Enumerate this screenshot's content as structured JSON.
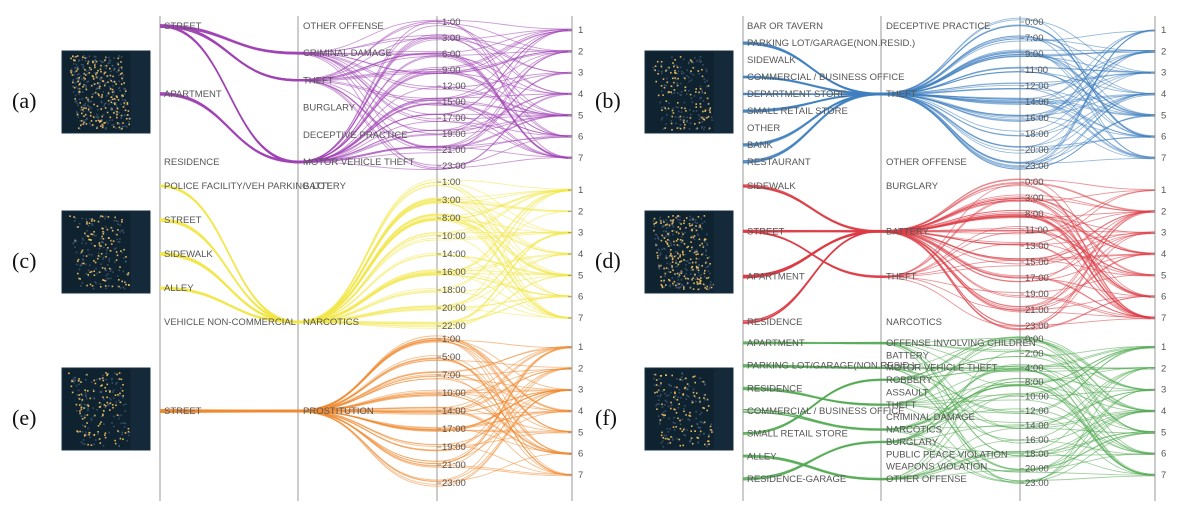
{
  "chart_data": [
    {
      "id": "a",
      "type": "parallel-coordinates",
      "label": "(a)",
      "color": "#a044b4",
      "locations": [
        "STREET",
        "APARTMENT",
        "RESIDENCE"
      ],
      "crimes": [
        "OTHER OFFENSE",
        "CRIMINAL DAMAGE",
        "THEFT",
        "BURGLARY",
        "DECEPTIVE PRACTICE",
        "MOTOR VEHICLE THEFT"
      ],
      "times": [
        "1:00",
        "3:00",
        "6:00",
        "9:00",
        "12:00",
        "15:00",
        "17:00",
        "19:00",
        "21:00",
        "23:00"
      ],
      "days": [
        "1",
        "2",
        "3",
        "4",
        "5",
        "6",
        "7"
      ],
      "hubs": [
        [
          0,
          2
        ],
        [
          0,
          5
        ],
        [
          0,
          1
        ],
        [
          1,
          5
        ]
      ]
    },
    {
      "id": "b",
      "type": "parallel-coordinates",
      "label": "(b)",
      "color": "#3f7fc0",
      "locations": [
        "BAR OR TAVERN",
        "PARKING LOT/GARAGE(NON.RESID.)",
        "SIDEWALK",
        "COMMERCIAL / BUSINESS OFFICE",
        "DEPARTMENT STORE",
        "SMALL RETAIL STORE",
        "OTHER",
        "BANK",
        "RESTAURANT"
      ],
      "crimes": [
        "DECEPTIVE PRACTICE",
        "THEFT",
        "OTHER OFFENSE"
      ],
      "times": [
        "0:00",
        "7:00",
        "9:00",
        "11:00",
        "12:00",
        "14:00",
        "16:00",
        "18:00",
        "20:00",
        "23:00"
      ],
      "days": [
        "1",
        "2",
        "3",
        "4",
        "5",
        "6",
        "7"
      ],
      "hubs": [
        [
          1,
          1
        ],
        [
          3,
          1
        ],
        [
          4,
          1
        ],
        [
          5,
          1
        ],
        [
          7,
          1
        ],
        [
          8,
          1
        ]
      ]
    },
    {
      "id": "c",
      "type": "parallel-coordinates",
      "label": "(c)",
      "color": "#f2e84a",
      "locations": [
        "POLICE FACILITY/VEH PARKING LOT",
        "STREET",
        "SIDEWALK",
        "ALLEY",
        "VEHICLE NON-COMMERCIAL"
      ],
      "crimes": [
        "BATTERY",
        "NARCOTICS"
      ],
      "times": [
        "1:00",
        "3:00",
        "8:00",
        "10:00",
        "14:00",
        "16:00",
        "18:00",
        "20:00",
        "22:00"
      ],
      "days": [
        "1",
        "2",
        "3",
        "4",
        "5",
        "6",
        "7"
      ],
      "hubs": [
        [
          1,
          1
        ],
        [
          2,
          1
        ],
        [
          3,
          1
        ],
        [
          0,
          1
        ]
      ]
    },
    {
      "id": "d",
      "type": "parallel-coordinates",
      "label": "(d)",
      "color": "#dc3c46",
      "locations": [
        "SIDEWALK",
        "STREET",
        "APARTMENT",
        "RESIDENCE"
      ],
      "crimes": [
        "BURGLARY",
        "BATTERY",
        "THEFT",
        "NARCOTICS"
      ],
      "times": [
        "0:00",
        "3:00",
        "8:00",
        "11:00",
        "13:00",
        "15:00",
        "17:00",
        "19:00",
        "21:00",
        "23:00"
      ],
      "days": [
        "1",
        "2",
        "3",
        "4",
        "5",
        "6",
        "7"
      ],
      "hubs": [
        [
          0,
          1
        ],
        [
          1,
          1
        ],
        [
          2,
          1
        ],
        [
          3,
          1
        ],
        [
          1,
          2
        ],
        [
          2,
          1
        ]
      ]
    },
    {
      "id": "e",
      "type": "parallel-coordinates",
      "label": "(e)",
      "color": "#f08a32",
      "locations": [
        "STREET"
      ],
      "crimes": [
        "PROSTITUTION"
      ],
      "times": [
        "1:00",
        "5:00",
        "7:00",
        "10:00",
        "14:00",
        "17:00",
        "19:00",
        "21:00",
        "23:00"
      ],
      "days": [
        "1",
        "2",
        "3",
        "4",
        "5",
        "6",
        "7"
      ],
      "hubs": [
        [
          0,
          0
        ]
      ]
    },
    {
      "id": "f",
      "type": "parallel-coordinates",
      "label": "(f)",
      "color": "#52aa52",
      "locations": [
        "APARTMENT",
        "PARKING LOT/GARAGE(NON.RESID.)",
        "RESIDENCE",
        "COMMERCIAL / BUSINESS OFFICE",
        "SMALL RETAIL STORE",
        "ALLEY",
        "RESIDENCE-GARAGE"
      ],
      "crimes": [
        "OFFENSE INVOLVING CHILDREN",
        "BATTERY",
        "MOTOR VEHICLE THEFT",
        "ROBBERY",
        "ASSAULT",
        "THEFT",
        "CRIMINAL DAMAGE",
        "NARCOTICS",
        "BURGLARY",
        "PUBLIC PEACE VIOLATION",
        "WEAPONS VIOLATION",
        "OTHER OFFENSE"
      ],
      "times": [
        "0:00",
        "2:00",
        "4:00",
        "8:00",
        "10:00",
        "12:00",
        "14:00",
        "16:00",
        "18:00",
        "20:00",
        "23:00"
      ],
      "days": [
        "1",
        "2",
        "3",
        "4",
        "5",
        "6",
        "7"
      ],
      "hubs": [
        [
          0,
          0
        ],
        [
          1,
          2
        ],
        [
          2,
          5
        ],
        [
          3,
          7
        ],
        [
          4,
          3
        ],
        [
          5,
          11
        ],
        [
          6,
          8
        ]
      ]
    }
  ]
}
